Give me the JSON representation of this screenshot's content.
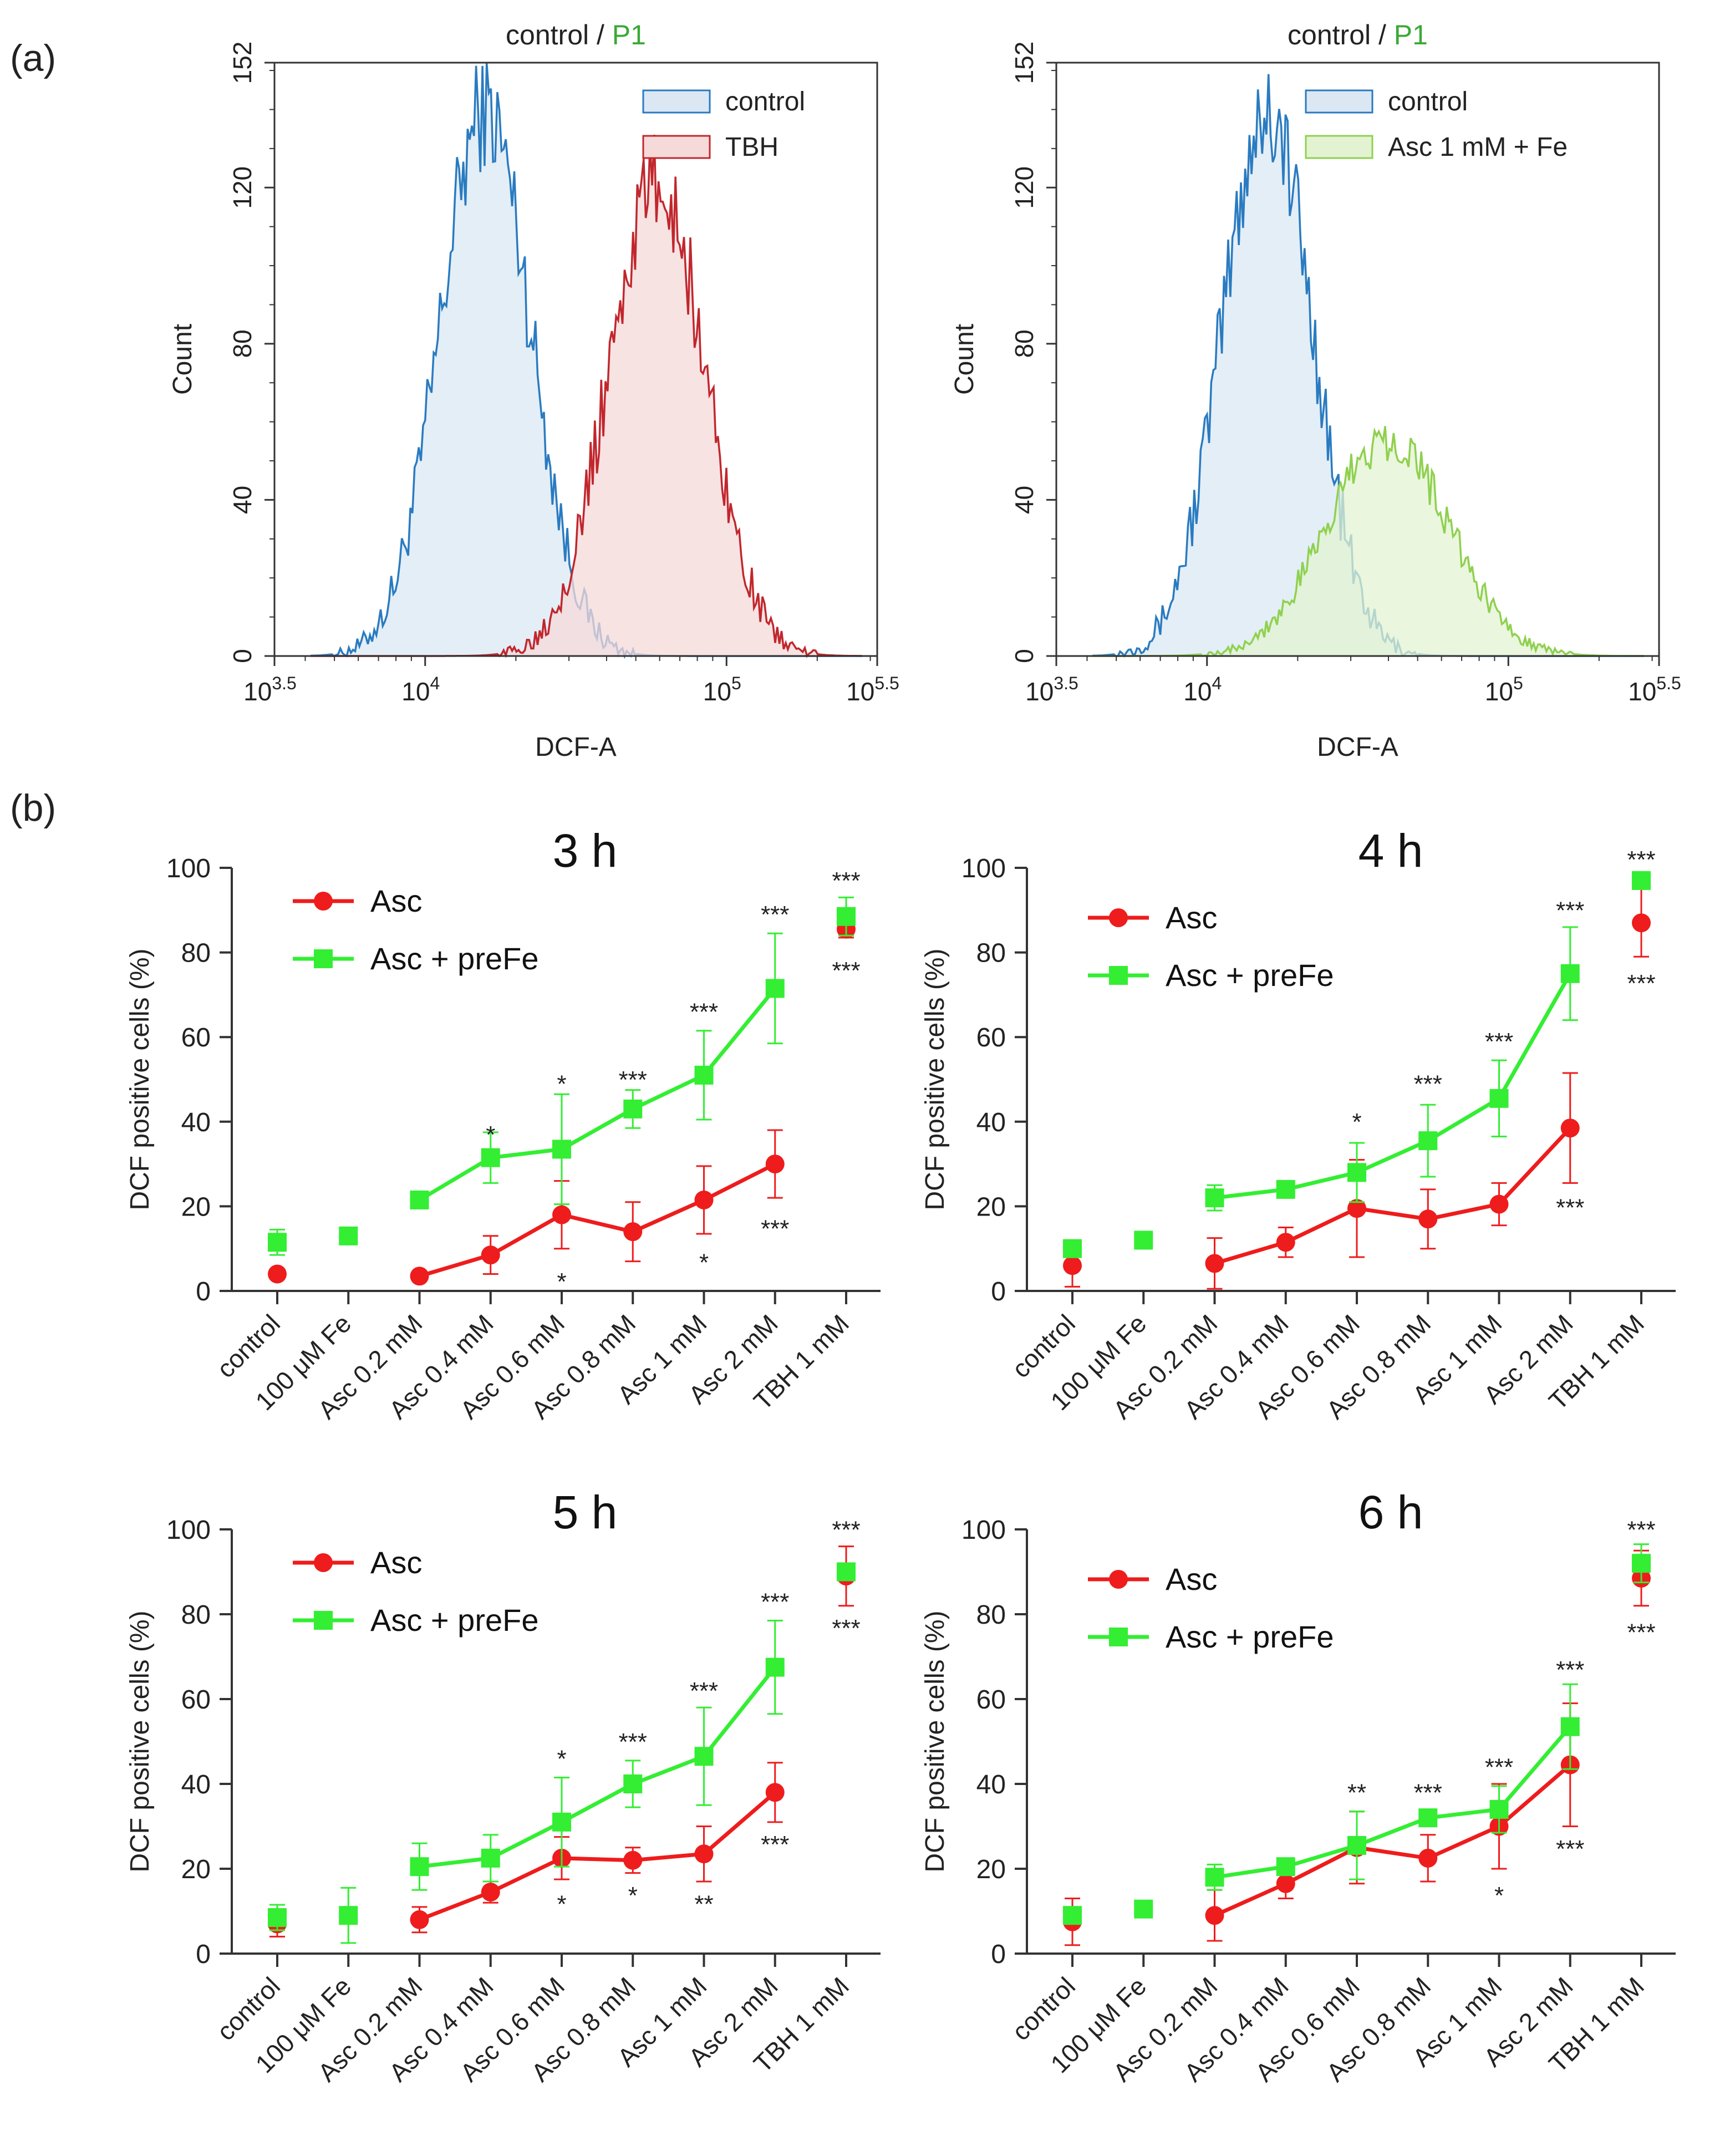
{
  "panel_labels": {
    "a": "(a)",
    "b": "(b)"
  },
  "colors": {
    "control": "#2a7bc0",
    "control_fill": "#dbe8f4",
    "tbh": "#c1272d",
    "tbh_fill": "#f6d9d9",
    "asc_fe": "#8fd14f",
    "asc_fe_fill": "#e3f3d2",
    "asc": "#ee1c1c",
    "asc_prefe": "#33ee33",
    "title_green": "#3aa935",
    "text": "#222222"
  },
  "histograms": [
    {
      "title_left": "control /",
      "title_right": "P1",
      "xlabel": "DCF-A",
      "ylabel": "Count",
      "y_ticks": [
        "0",
        "40",
        "80",
        "120",
        "152"
      ],
      "x_ticks": [
        {
          "base": "10",
          "exp": "3.5"
        },
        {
          "base": "10",
          "exp": "4"
        },
        {
          "base": "10",
          "exp": "5"
        },
        {
          "base": "10",
          "exp": "5.5"
        }
      ],
      "legend": [
        "control",
        "TBH"
      ]
    },
    {
      "title_left": "control /",
      "title_right": "P1",
      "xlabel": "DCF-A",
      "ylabel": "Count",
      "y_ticks": [
        "0",
        "40",
        "80",
        "120",
        "152"
      ],
      "x_ticks": [
        {
          "base": "10",
          "exp": "3.5"
        },
        {
          "base": "10",
          "exp": "4"
        },
        {
          "base": "10",
          "exp": "5"
        },
        {
          "base": "10",
          "exp": "5.5"
        }
      ],
      "legend": [
        "control",
        "Asc 1 mM + Fe"
      ]
    }
  ],
  "chart_data": [
    {
      "type": "histogram",
      "title": "control / P1",
      "xlabel": "DCF-A",
      "ylabel": "Count",
      "x_scale": "log10",
      "xlim": [
        3.5,
        5.5
      ],
      "ylim": [
        0,
        152
      ],
      "series": [
        {
          "name": "control",
          "peak_log10": 4.2,
          "sigma": 0.15,
          "peak_count": 140
        },
        {
          "name": "TBH",
          "peak_log10": 4.77,
          "sigma": 0.16,
          "peak_count": 121
        }
      ]
    },
    {
      "type": "histogram",
      "title": "control / P1",
      "xlabel": "DCF-A",
      "ylabel": "Count",
      "x_scale": "log10",
      "xlim": [
        3.5,
        5.5
      ],
      "ylim": [
        0,
        152
      ],
      "series": [
        {
          "name": "control",
          "peak_log10": 4.2,
          "sigma": 0.15,
          "peak_count": 140
        },
        {
          "name": "Asc 1 mM + Fe",
          "peak_log10": 4.6,
          "sigma": 0.2,
          "peak_count": 56
        }
      ]
    },
    {
      "type": "line",
      "title": "3 h",
      "ylabel": "DCF positive cells (%)",
      "ylim": [
        0,
        100
      ],
      "yticks": [
        "0",
        "20",
        "40",
        "60",
        "80",
        "100"
      ],
      "categories": [
        "control",
        "100 μM Fe",
        "Asc 0.2 mM",
        "Asc 0.4 mM",
        "Asc 0.6 mM",
        "Asc 0.8 mM",
        "Asc 1 mM",
        "Asc 2 mM",
        "TBH 1 mM"
      ],
      "series": [
        {
          "name": "Asc",
          "values": [
            4,
            null,
            3.5,
            8.5,
            18,
            14,
            21.5,
            30,
            85.5
          ],
          "errors": [
            1,
            null,
            1,
            4.5,
            8,
            7,
            8,
            8,
            2
          ],
          "line_from": 2,
          "line_to": 7
        },
        {
          "name": "Asc + preFe",
          "values": [
            11.5,
            13,
            21.5,
            31.5,
            33.5,
            43,
            51,
            71.5,
            88.5
          ],
          "errors": [
            3,
            2,
            1.5,
            6,
            13,
            4.5,
            10.5,
            13,
            4.5
          ],
          "line_from": 2,
          "line_to": 7
        }
      ],
      "annotations": [
        {
          "cat": 3,
          "y": 35,
          "text": "*",
          "pos": "above"
        },
        {
          "cat": 4,
          "y": 47,
          "text": "*",
          "pos": "above"
        },
        {
          "cat": 4,
          "y": 5.5,
          "text": "*",
          "pos": "below"
        },
        {
          "cat": 5,
          "y": 48,
          "text": "***",
          "pos": "above"
        },
        {
          "cat": 6,
          "y": 64,
          "text": "***",
          "pos": "above"
        },
        {
          "cat": 6,
          "y": 10,
          "text": "*",
          "pos": "below"
        },
        {
          "cat": 7,
          "y": 87,
          "text": "***",
          "pos": "above"
        },
        {
          "cat": 7,
          "y": 18,
          "text": "***",
          "pos": "below"
        },
        {
          "cat": 8,
          "y": 95,
          "text": "***",
          "pos": "above"
        },
        {
          "cat": 8,
          "y": 79,
          "text": "***",
          "pos": "below"
        }
      ]
    },
    {
      "type": "line",
      "title": "4 h",
      "ylabel": "DCF positive cells (%)",
      "ylim": [
        0,
        100
      ],
      "yticks": [
        "0",
        "20",
        "40",
        "60",
        "80",
        "100"
      ],
      "categories": [
        "control",
        "100 μM Fe",
        "Asc 0.2 mM",
        "Asc 0.4 mM",
        "Asc 0.6 mM",
        "Asc 0.8 mM",
        "Asc 1 mM",
        "Asc 2 mM",
        "TBH 1 mM"
      ],
      "series": [
        {
          "name": "Asc",
          "values": [
            6,
            null,
            6.5,
            11.5,
            19.5,
            17,
            20.5,
            38.5,
            87
          ],
          "errors": [
            5,
            null,
            6,
            3.5,
            11.5,
            7,
            5,
            13,
            8
          ],
          "line_from": 2,
          "line_to": 7
        },
        {
          "name": "Asc + preFe",
          "values": [
            10,
            12,
            22,
            24,
            28,
            35.5,
            45.5,
            75,
            97
          ],
          "errors": [
            2,
            2,
            3,
            2,
            7,
            8.5,
            9,
            11,
            1
          ],
          "line_from": 2,
          "line_to": 7
        }
      ],
      "annotations": [
        {
          "cat": 4,
          "y": 38,
          "text": "*",
          "pos": "above"
        },
        {
          "cat": 5,
          "y": 47,
          "text": "***",
          "pos": "above"
        },
        {
          "cat": 6,
          "y": 57,
          "text": "***",
          "pos": "above"
        },
        {
          "cat": 7,
          "y": 88,
          "text": "***",
          "pos": "above"
        },
        {
          "cat": 7,
          "y": 23,
          "text": "***",
          "pos": "below"
        },
        {
          "cat": 8,
          "y": 100,
          "text": "***",
          "pos": "above"
        },
        {
          "cat": 8,
          "y": 76,
          "text": "***",
          "pos": "below"
        }
      ]
    },
    {
      "type": "line",
      "title": "5 h",
      "ylabel": "DCF positive cells (%)",
      "ylim": [
        0,
        100
      ],
      "yticks": [
        "0",
        "20",
        "40",
        "60",
        "80",
        "100"
      ],
      "categories": [
        "control",
        "100 μM Fe",
        "Asc 0.2 mM",
        "Asc 0.4 mM",
        "Asc 0.6 mM",
        "Asc 0.8 mM",
        "Asc 1 mM",
        "Asc 2 mM",
        "TBH 1 mM"
      ],
      "series": [
        {
          "name": "Asc",
          "values": [
            7,
            null,
            8,
            14.5,
            22.5,
            22,
            23.5,
            38,
            89
          ],
          "errors": [
            3,
            null,
            3,
            2.5,
            5,
            3,
            6.5,
            7,
            7
          ],
          "line_from": 2,
          "line_to": 7
        },
        {
          "name": "Asc + preFe",
          "values": [
            8.5,
            9,
            20.5,
            22.5,
            31,
            40,
            46.5,
            67.5,
            90
          ],
          "errors": [
            3,
            6.5,
            5.5,
            5.5,
            10.5,
            5.5,
            11.5,
            11,
            2
          ],
          "line_from": 2,
          "line_to": 7
        }
      ],
      "annotations": [
        {
          "cat": 4,
          "y": 44,
          "text": "*",
          "pos": "above"
        },
        {
          "cat": 4,
          "y": 15,
          "text": "*",
          "pos": "below"
        },
        {
          "cat": 5,
          "y": 48,
          "text": "***",
          "pos": "above"
        },
        {
          "cat": 5,
          "y": 17,
          "text": "*",
          "pos": "below"
        },
        {
          "cat": 6,
          "y": 60,
          "text": "***",
          "pos": "above"
        },
        {
          "cat": 6,
          "y": 15,
          "text": "**",
          "pos": "below"
        },
        {
          "cat": 7,
          "y": 81,
          "text": "***",
          "pos": "above"
        },
        {
          "cat": 7,
          "y": 29,
          "text": "***",
          "pos": "below"
        },
        {
          "cat": 8,
          "y": 98,
          "text": "***",
          "pos": "above"
        },
        {
          "cat": 8,
          "y": 80,
          "text": "***",
          "pos": "below"
        }
      ]
    },
    {
      "type": "line",
      "title": "6 h",
      "ylabel": "DCF positive cells (%)",
      "ylim": [
        0,
        100
      ],
      "yticks": [
        "0",
        "20",
        "40",
        "60",
        "80",
        "100"
      ],
      "categories": [
        "control",
        "100 μM Fe",
        "Asc 0.2 mM",
        "Asc 0.4 mM",
        "Asc 0.6 mM",
        "Asc 0.8 mM",
        "Asc 1 mM",
        "Asc 2 mM",
        "TBH 1 mM"
      ],
      "series": [
        {
          "name": "Asc",
          "values": [
            7.5,
            null,
            9,
            16.5,
            25,
            22.5,
            30,
            44.5,
            88.5
          ],
          "errors": [
            5.5,
            null,
            6,
            3.5,
            8.5,
            5.5,
            10,
            14.5,
            6.5
          ],
          "line_from": 2,
          "line_to": 7
        },
        {
          "name": "Asc + preFe",
          "values": [
            9,
            10.5,
            18,
            20.5,
            25.5,
            32,
            34,
            53.5,
            92
          ],
          "errors": [
            2,
            1.5,
            3,
            1.5,
            8,
            2,
            5.5,
            10,
            4.5
          ],
          "line_from": 2,
          "line_to": 7
        }
      ],
      "annotations": [
        {
          "cat": 4,
          "y": 36,
          "text": "**",
          "pos": "above"
        },
        {
          "cat": 5,
          "y": 36,
          "text": "***",
          "pos": "above"
        },
        {
          "cat": 6,
          "y": 42,
          "text": "***",
          "pos": "above"
        },
        {
          "cat": 6,
          "y": 17,
          "text": "*",
          "pos": "below"
        },
        {
          "cat": 7,
          "y": 65,
          "text": "***",
          "pos": "above"
        },
        {
          "cat": 7,
          "y": 28,
          "text": "***",
          "pos": "below"
        },
        {
          "cat": 8,
          "y": 98,
          "text": "***",
          "pos": "above"
        },
        {
          "cat": 8,
          "y": 79,
          "text": "***",
          "pos": "below"
        }
      ]
    }
  ]
}
